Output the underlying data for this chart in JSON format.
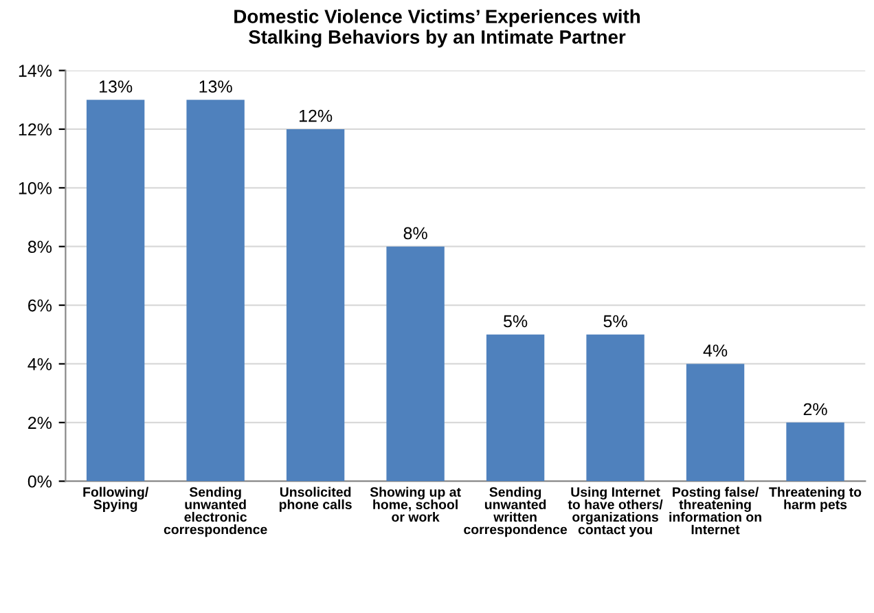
{
  "chart_data": {
    "type": "bar",
    "title": "Domestic Violence Victims’ Experiences with\nStalking Behaviors by an Intimate Partner",
    "categories": [
      "Following/\nSpying",
      "Sending\nunwanted\nelectronic\ncorrespondence",
      "Unsolicited\nphone calls",
      "Showing up at\nhome, school\nor work",
      "Sending\nunwanted\nwritten\ncorrespondence",
      "Using Internet\nto have others/\norganizations\ncontact you",
      "Posting false/\nthreatening\ninformation on\nInternet",
      "Threatening to\nharm pets"
    ],
    "values": [
      13,
      13,
      12,
      8,
      5,
      5,
      4,
      2
    ],
    "value_labels": [
      "13%",
      "13%",
      "12%",
      "8%",
      "5%",
      "5%",
      "4%",
      "2%"
    ],
    "color": "#4f81bd",
    "ylim": [
      0,
      14
    ],
    "yticks": [
      {
        "value": 0,
        "label": "0%"
      },
      {
        "value": 2,
        "label": "2%"
      },
      {
        "value": 4,
        "label": "4%"
      },
      {
        "value": 6,
        "label": "6%"
      },
      {
        "value": 8,
        "label": "8%"
      },
      {
        "value": 10,
        "label": "10%"
      },
      {
        "value": 12,
        "label": "12%"
      },
      {
        "value": 14,
        "label": "14%"
      }
    ],
    "grid": "y",
    "legend": false
  }
}
